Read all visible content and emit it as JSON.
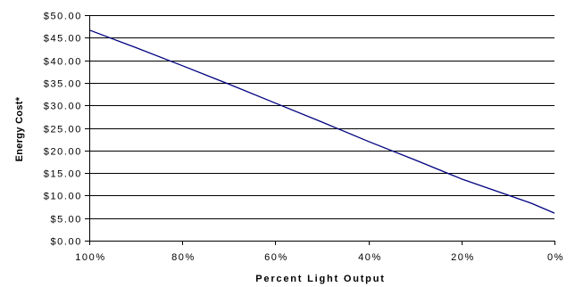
{
  "chart_data": {
    "type": "line",
    "xlabel": "Percent Light Output",
    "ylabel": "Energy Cost*",
    "x_ticks": [
      "100%",
      "80%",
      "60%",
      "40%",
      "20%",
      "0%"
    ],
    "y_ticks": [
      "$0.00",
      "$5.00",
      "$10.00",
      "$15.00",
      "$20.00",
      "$25.00",
      "$30.00",
      "$35.00",
      "$40.00",
      "$45.00",
      "$50.00"
    ],
    "xlim": [
      100,
      0
    ],
    "ylim": [
      0,
      50
    ],
    "x_reversed": true,
    "grid": "horizontal",
    "legend": "none",
    "series": [
      {
        "x": [
          100,
          90,
          80,
          70,
          60,
          50,
          40,
          30,
          20,
          10,
          5,
          0
        ],
        "values": [
          46.7,
          42.8,
          38.8,
          34.7,
          30.5,
          26.3,
          22.0,
          17.9,
          13.7,
          10.1,
          8.3,
          6.1
        ]
      }
    ],
    "colors": {
      "line": "#000080",
      "gridline": "#000000",
      "axis": "#000000"
    }
  }
}
